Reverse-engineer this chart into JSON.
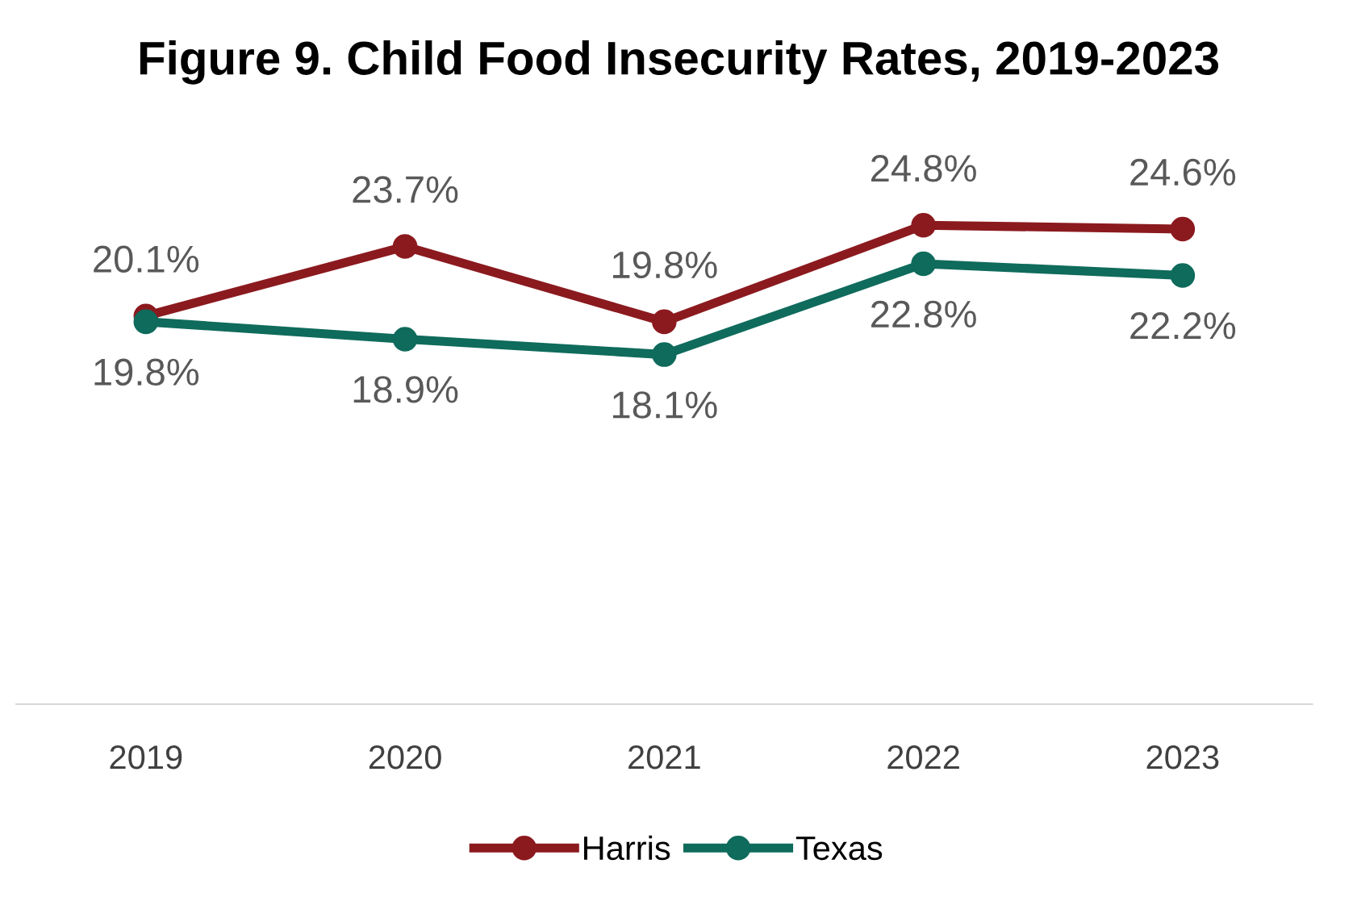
{
  "chart_data": {
    "type": "line",
    "title": "Figure 9. Child Food Insecurity Rates, 2019-2023",
    "categories": [
      "2019",
      "2020",
      "2021",
      "2022",
      "2023"
    ],
    "series": [
      {
        "name": "Harris",
        "color": "#8b1a1f",
        "values": [
          20.1,
          23.7,
          19.8,
          24.8,
          24.6
        ],
        "value_labels": [
          "20.1%",
          "23.7%",
          "19.8%",
          "24.8%",
          "24.6%"
        ]
      },
      {
        "name": "Texas",
        "color": "#0f6b5c",
        "values": [
          19.8,
          18.9,
          18.1,
          22.8,
          22.2
        ],
        "value_labels": [
          "19.8%",
          "18.9%",
          "18.1%",
          "22.8%",
          "22.2%"
        ]
      }
    ],
    "legend": "bottom",
    "marker": "circle",
    "line_style": "solid",
    "grid": false
  }
}
